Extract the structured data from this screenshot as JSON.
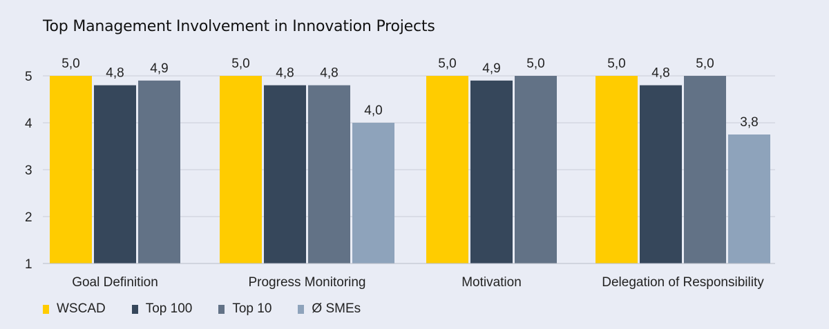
{
  "chart_data": {
    "type": "bar",
    "title": "Top Management Involvement in Innovation Projects",
    "xlabel": "",
    "ylabel": "",
    "ylim": [
      1,
      5
    ],
    "yticks": [
      1,
      2,
      3,
      4,
      5
    ],
    "grid": true,
    "legend_position": "bottom-left",
    "categories": [
      "Goal Definition",
      "Progress Monitoring",
      "Motivation",
      "Delegation of Responsibility"
    ],
    "series": [
      {
        "name": "WSCAD",
        "color": "#ffcc00",
        "values": [
          5.0,
          5.0,
          5.0,
          5.0
        ],
        "labels": [
          "5,0",
          "5,0",
          "5,0",
          "5,0"
        ]
      },
      {
        "name": "Top 100",
        "color": "#36475b",
        "values": [
          4.8,
          4.8,
          4.9,
          4.8
        ],
        "labels": [
          "4,8",
          "4,8",
          "4,9",
          "4,8"
        ]
      },
      {
        "name": "Top 10",
        "color": "#627286",
        "values": [
          4.9,
          4.8,
          5.0,
          5.0
        ],
        "labels": [
          "4,9",
          "4,8",
          "5,0",
          "5,0"
        ]
      },
      {
        "name": "Ø SMEs",
        "color": "#8ea3bb",
        "values": [
          null,
          4.0,
          null,
          3.75
        ],
        "labels": [
          null,
          "4,0",
          null,
          "3,8"
        ]
      }
    ]
  }
}
